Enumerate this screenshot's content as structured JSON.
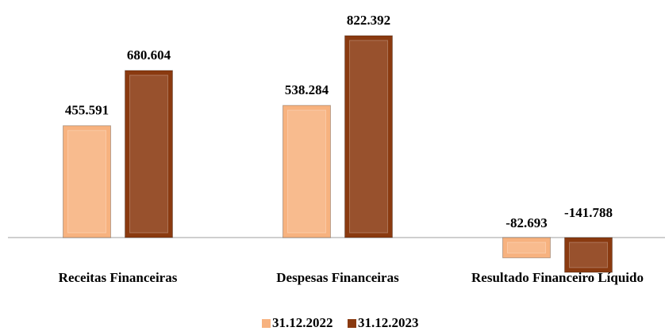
{
  "chart_data": {
    "type": "bar",
    "categories": [
      "Receitas Financeiras",
      "Despesas Financeiras",
      "Resultado Financeiro Líquido"
    ],
    "series": [
      {
        "name": "31.12.2022",
        "color": "#f7b27f",
        "values": [
          455591,
          538284,
          -82693
        ],
        "value_labels": [
          "455.591",
          "538.284",
          "-82.693"
        ]
      },
      {
        "name": "31.12.2023",
        "color": "#8a3a10",
        "values": [
          680604,
          822392,
          -141788
        ],
        "value_labels": [
          "680.604",
          "822.392",
          "-141.788"
        ]
      }
    ]
  }
}
